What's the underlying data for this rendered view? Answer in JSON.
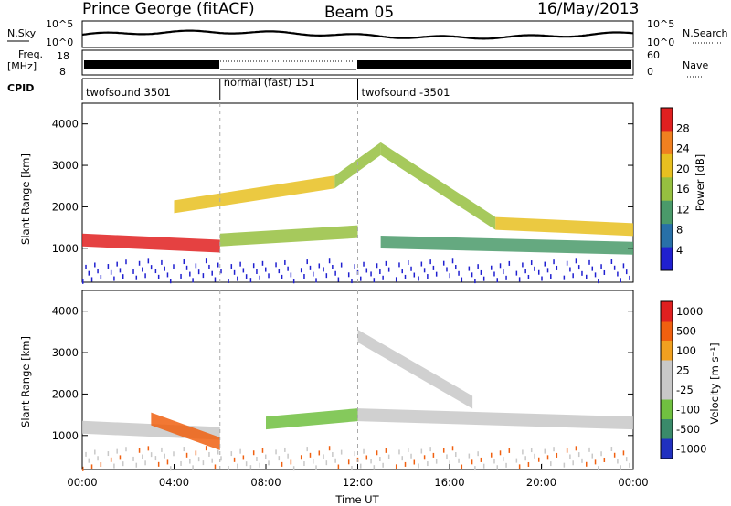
{
  "header": {
    "station": "Prince George (fitACF)",
    "beam": "Beam 05",
    "date": "16/May/2013"
  },
  "strips": {
    "nsky_label": "N.Sky",
    "nsky_ticks": [
      "10^5",
      "10^0"
    ],
    "nsearch_label": "N.Search",
    "nsearch_ticks": [
      "10^5",
      "10^0"
    ],
    "freq_label": "Freq.",
    "freq_unit": "[MHz]",
    "freq_ticks": [
      "18",
      "8"
    ],
    "nave_label": "Nave",
    "nave_ticks": [
      "60",
      "0"
    ],
    "cpid_label": "CPID",
    "cpid_segments": [
      {
        "name": "twofsound 3501",
        "start_hour": 0,
        "end_hour": 6
      },
      {
        "name": "normal (fast) 151",
        "start_hour": 6,
        "end_hour": 12
      },
      {
        "name": "twofsound -3501",
        "start_hour": 12,
        "end_hour": 24
      }
    ]
  },
  "chart_data": [
    {
      "type": "heatmap",
      "name": "power-panel",
      "ylabel": "Slant Range [km]",
      "xlabel": "",
      "xlim": [
        0,
        24
      ],
      "ylim": [
        180,
        4500
      ],
      "yticks": [
        "1000",
        "2000",
        "3000",
        "4000"
      ],
      "colorbar": {
        "label": "Power [dB]",
        "ticks": [
          "4",
          "8",
          "12",
          "16",
          "20",
          "24",
          "28"
        ],
        "colors": [
          "#2020d0",
          "#2870a8",
          "#4a9a6a",
          "#96c040",
          "#e8c020",
          "#f08020",
          "#e02020"
        ]
      },
      "echo_bands": [
        {
          "start_hour": 0.0,
          "end_hour": 6.0,
          "start_km": 1200,
          "end_km": 1050,
          "value_db": 26
        },
        {
          "start_hour": 4.0,
          "end_hour": 11.0,
          "start_km": 2000,
          "end_km": 2600,
          "value_db": 18
        },
        {
          "start_hour": 11.0,
          "end_hour": 13.0,
          "start_km": 2600,
          "end_km": 3400,
          "value_db": 16
        },
        {
          "start_hour": 13.0,
          "end_hour": 18.0,
          "start_km": 3400,
          "end_km": 1600,
          "value_db": 16
        },
        {
          "start_hour": 18.0,
          "end_hour": 24.0,
          "start_km": 1600,
          "end_km": 1450,
          "value_db": 20
        },
        {
          "start_hour": 6.0,
          "end_hour": 12.0,
          "start_km": 1200,
          "end_km": 1400,
          "value_db": 14
        },
        {
          "start_hour": 13.0,
          "end_hour": 24.0,
          "start_km": 1150,
          "end_km": 1000,
          "value_db": 12
        }
      ]
    },
    {
      "type": "heatmap",
      "name": "velocity-panel",
      "ylabel": "Slant Range [km]",
      "xlabel": "Time UT",
      "xlim": [
        0,
        24
      ],
      "ylim": [
        180,
        4500
      ],
      "yticks": [
        "1000",
        "2000",
        "3000",
        "4000"
      ],
      "xticks": [
        "00:00",
        "04:00",
        "08:00",
        "12:00",
        "16:00",
        "20:00",
        "00:00"
      ],
      "colorbar": {
        "label": "Velocity [m s⁻¹]",
        "ticks": [
          "1000",
          "500",
          "100",
          "25",
          "-25",
          "-100",
          "-500",
          "-1000"
        ],
        "colors": [
          "#2030c0",
          "#3a8a6a",
          "#70c040",
          "#c8c8c8",
          "#c8c8c8",
          "#f0a020",
          "#f06010",
          "#e02020"
        ]
      },
      "echo_bands": [
        {
          "start_hour": 0.0,
          "end_hour": 6.0,
          "start_km": 1200,
          "end_km": 1050,
          "value_ms": 0
        },
        {
          "start_hour": 3.0,
          "end_hour": 6.0,
          "start_km": 1400,
          "end_km": 800,
          "value_ms": -300
        },
        {
          "start_hour": 8.0,
          "end_hour": 12.0,
          "start_km": 1300,
          "end_km": 1500,
          "value_ms": 200
        },
        {
          "start_hour": 12.0,
          "end_hour": 24.0,
          "start_km": 1500,
          "end_km": 1300,
          "value_ms": 0
        },
        {
          "start_hour": 12.0,
          "end_hour": 17.0,
          "start_km": 3400,
          "end_km": 1800,
          "value_ms": 0
        }
      ]
    }
  ]
}
